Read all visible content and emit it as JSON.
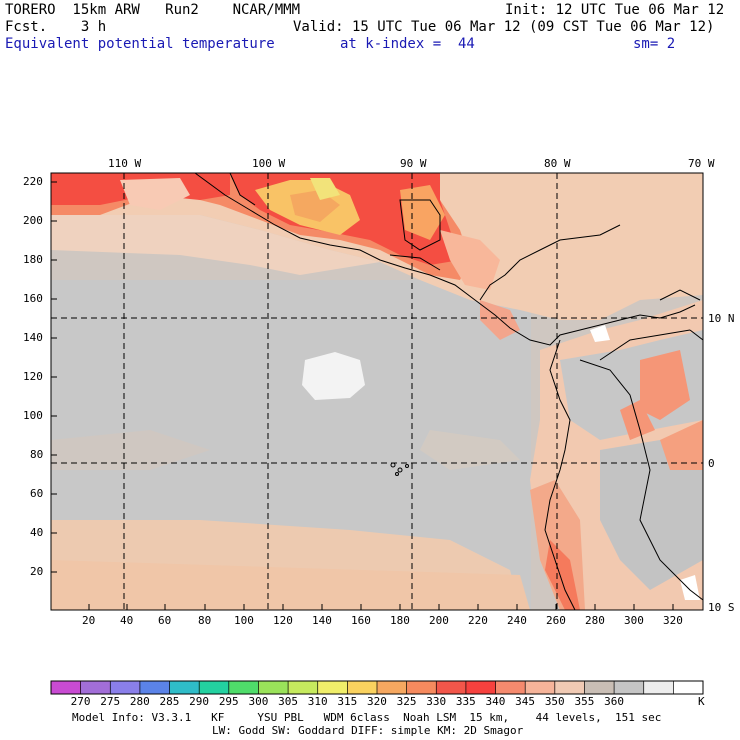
{
  "header": {
    "title": "TORERO  15km ARW   Run2    NCAR/MMM",
    "init": "Init: 12 UTC Tue 06 Mar 12",
    "fcst": "Fcst.    3 h",
    "valid": "Valid: 15 UTC Tue 06 Mar 12 (09 CST Tue 06 Mar 12)",
    "field": "Equivalent potential temperature",
    "kindex": "at k-index =  44",
    "sm": "sm= 2"
  },
  "axes": {
    "lon_labels": [
      "110 W",
      "100 W",
      "90 W",
      "80 W",
      "70 W"
    ],
    "lat_labels": [
      "10 N",
      "0",
      "10 S"
    ],
    "x_ticks": [
      "20",
      "40",
      "60",
      "80",
      "100",
      "120",
      "140",
      "160",
      "180",
      "200",
      "220",
      "240",
      "260",
      "280",
      "300",
      "320"
    ],
    "y_ticks": [
      "20",
      "40",
      "60",
      "80",
      "100",
      "120",
      "140",
      "160",
      "180",
      "200",
      "220"
    ]
  },
  "colorbar": {
    "labels": [
      "270",
      "275",
      "280",
      "285",
      "290",
      "295",
      "300",
      "305",
      "310",
      "315",
      "320",
      "325",
      "330",
      "335",
      "340",
      "345",
      "350",
      "355",
      "360"
    ],
    "unit": "K",
    "colors": [
      "#c84bd2",
      "#a26ed8",
      "#8a7fea",
      "#5b83e8",
      "#2fbcc8",
      "#23d1a0",
      "#4fdc6a",
      "#9ae25a",
      "#c6ea5e",
      "#f0ee6a",
      "#fad25f",
      "#f6a860",
      "#f68a5e",
      "#f2564a",
      "#f6413e",
      "#f58a6e",
      "#f6b49a",
      "#f0cab4",
      "#c9beb5",
      "#c5c5c5",
      "#ededed",
      "#ffffff"
    ]
  },
  "footer": {
    "line1": "Model Info: V3.3.1   KF     YSU PBL   WDM 6class  Noah LSM  15 km,    44 levels,  151 sec",
    "line2": "LW: Godd SW: Goddard DIFF: simple KM: 2D Smagor"
  }
}
